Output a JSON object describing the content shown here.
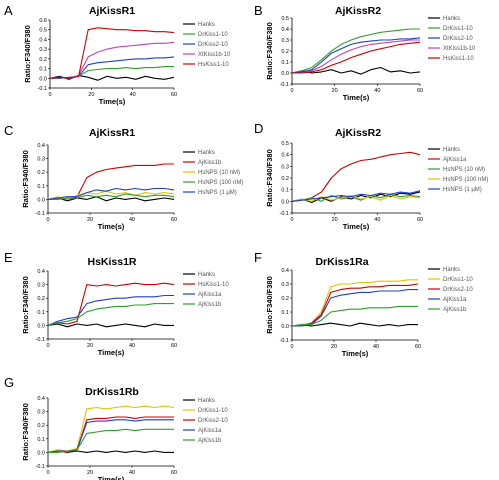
{
  "chart_data": [
    {
      "panel": "A",
      "type": "line",
      "title": "AjKissR1",
      "xlabel": "Time(s)",
      "ylabel": "Ratio:F340/F380",
      "xlim": [
        0,
        60
      ],
      "ylim": [
        -0.1,
        0.6
      ],
      "xticks": [
        "0",
        "20",
        "40",
        "60"
      ],
      "yticks": [
        "-0.1",
        "0.0",
        "0.1",
        "0.2",
        "0.3",
        "0.4",
        "0.5",
        "0.6"
      ],
      "legend_position": "top-right",
      "series": [
        {
          "name": "Hanks",
          "color": "#000000",
          "values": [
            0,
            0.02,
            -0.01,
            0.03,
            0.01,
            -0.02,
            0.02,
            0.0,
            0.01,
            -0.01,
            0.02,
            0.0,
            -0.01,
            0.01
          ]
        },
        {
          "name": "DrKiss1-10",
          "color": "#2ca02c",
          "values": [
            0,
            0.01,
            0.0,
            0.02,
            0.08,
            0.09,
            0.1,
            0.1,
            0.11,
            0.1,
            0.11,
            0.11,
            0.12,
            0.12
          ]
        },
        {
          "name": "DrKiss2-10",
          "color": "#1f3fd1",
          "values": [
            0,
            0.0,
            0.01,
            0.02,
            0.14,
            0.16,
            0.17,
            0.18,
            0.19,
            0.2,
            0.2,
            0.21,
            0.21,
            0.22
          ]
        },
        {
          "name": "XtKiss1b-10",
          "color": "#c040c0",
          "values": [
            0,
            0.01,
            0.0,
            0.03,
            0.22,
            0.27,
            0.3,
            0.32,
            0.33,
            0.34,
            0.35,
            0.36,
            0.36,
            0.37
          ]
        },
        {
          "name": "HsKiss1-10",
          "color": "#d00000",
          "values": [
            0,
            0.01,
            0.0,
            0.02,
            0.5,
            0.52,
            0.51,
            0.5,
            0.5,
            0.49,
            0.49,
            0.48,
            0.48,
            0.47
          ]
        }
      ]
    },
    {
      "panel": "B",
      "type": "line",
      "title": "AjKissR2",
      "xlabel": "Time(s)",
      "ylabel": "Ratio:F340/F380",
      "xlim": [
        0,
        60
      ],
      "ylim": [
        -0.1,
        0.5
      ],
      "xticks": [
        "0",
        "20",
        "40",
        "60"
      ],
      "yticks": [
        "-0.1",
        "0.0",
        "0.1",
        "0.2",
        "0.3",
        "0.4",
        "0.5"
      ],
      "legend_position": "top-right",
      "series": [
        {
          "name": "Hanks",
          "color": "#000000",
          "values": [
            0,
            0.02,
            0.0,
            0.01,
            0.03,
            0.0,
            0.02,
            -0.01,
            0.03,
            0.05,
            0.01,
            0.02,
            0.0,
            0.01
          ]
        },
        {
          "name": "DrKiss1-10",
          "color": "#2ca02c",
          "values": [
            0,
            0.02,
            0.05,
            0.12,
            0.2,
            0.26,
            0.3,
            0.33,
            0.35,
            0.37,
            0.38,
            0.39,
            0.4,
            0.4
          ]
        },
        {
          "name": "DrKiss2-10",
          "color": "#1f3fd1",
          "values": [
            0,
            0.01,
            0.03,
            0.1,
            0.18,
            0.22,
            0.26,
            0.28,
            0.29,
            0.3,
            0.3,
            0.31,
            0.31,
            0.32
          ]
        },
        {
          "name": "XtKiss1b-10",
          "color": "#c040c0",
          "values": [
            0,
            0.0,
            0.02,
            0.06,
            0.12,
            0.17,
            0.21,
            0.24,
            0.26,
            0.27,
            0.28,
            0.29,
            0.3,
            0.3
          ]
        },
        {
          "name": "HsKiss1-10",
          "color": "#d00000",
          "values": [
            0,
            0.0,
            0.01,
            0.03,
            0.07,
            0.1,
            0.14,
            0.17,
            0.2,
            0.22,
            0.24,
            0.26,
            0.27,
            0.28
          ]
        }
      ]
    },
    {
      "panel": "C",
      "type": "line",
      "title": "AjKissR1",
      "xlabel": "Time(s)",
      "ylabel": "Ratio:F340/F380",
      "xlim": [
        0,
        60
      ],
      "ylim": [
        -0.1,
        0.4
      ],
      "xticks": [
        "0",
        "20",
        "40",
        "60"
      ],
      "yticks": [
        "-0.1",
        "0.0",
        "0.1",
        "0.2",
        "0.3",
        "0.4"
      ],
      "legend_position": "top-right",
      "series": [
        {
          "name": "Hanks",
          "color": "#000000",
          "values": [
            0,
            0.01,
            -0.01,
            0.01,
            0.0,
            0.02,
            -0.01,
            0.01,
            0.0,
            0.01,
            -0.01,
            0.0,
            0.01,
            0.0
          ]
        },
        {
          "name": "AjKiss1b",
          "color": "#d00000",
          "values": [
            0,
            0.01,
            0.0,
            0.02,
            0.16,
            0.2,
            0.22,
            0.23,
            0.24,
            0.25,
            0.25,
            0.25,
            0.26,
            0.26
          ]
        },
        {
          "name": "HsNPS (10 nM)",
          "color": "#e6c200",
          "values": [
            0,
            0.02,
            0.0,
            0.03,
            0.05,
            0.04,
            0.06,
            0.04,
            0.05,
            0.03,
            0.05,
            0.04,
            0.05,
            0.04
          ]
        },
        {
          "name": "HsNPS (100 nM)",
          "color": "#2ca02c",
          "values": [
            0,
            0.0,
            0.01,
            0.01,
            0.03,
            0.02,
            0.03,
            0.02,
            0.04,
            0.03,
            0.02,
            0.03,
            0.03,
            0.02
          ]
        },
        {
          "name": "HsNPS (1 μM)",
          "color": "#1f3fd1",
          "values": [
            0,
            0.01,
            0.02,
            0.02,
            0.05,
            0.07,
            0.06,
            0.08,
            0.07,
            0.08,
            0.07,
            0.08,
            0.08,
            0.07
          ]
        }
      ]
    },
    {
      "panel": "D",
      "type": "line",
      "title": "AjKissR2",
      "xlabel": "Time(s)",
      "ylabel": "Ratio:F340/F380",
      "xlim": [
        0,
        60
      ],
      "ylim": [
        -0.1,
        0.5
      ],
      "xticks": [
        "0",
        "20",
        "40",
        "60"
      ],
      "yticks": [
        "-0.1",
        "0.0",
        "0.1",
        "0.2",
        "0.3",
        "0.4",
        "0.5"
      ],
      "legend_position": "top-right",
      "series": [
        {
          "name": "Hanks",
          "color": "#000000",
          "values": [
            0,
            0.02,
            -0.01,
            0.03,
            0.0,
            0.04,
            0.02,
            0.05,
            0.03,
            0.06,
            0.04,
            0.07,
            0.06,
            0.08
          ]
        },
        {
          "name": "AjKiss1a",
          "color": "#d00000",
          "values": [
            0,
            0.01,
            0.03,
            0.08,
            0.2,
            0.28,
            0.32,
            0.35,
            0.36,
            0.38,
            0.4,
            0.41,
            0.42,
            0.4
          ]
        },
        {
          "name": "HsNPS (10 nM)",
          "color": "#2ca02c",
          "values": [
            0,
            0.01,
            0.03,
            0.0,
            0.05,
            0.02,
            0.04,
            0.01,
            0.05,
            0.03,
            0.06,
            0.04,
            0.05,
            0.04
          ]
        },
        {
          "name": "HsNPS (100 nM)",
          "color": "#e6c200",
          "values": [
            0,
            0.02,
            0.0,
            0.04,
            0.01,
            0.03,
            0.05,
            0.02,
            0.04,
            0.01,
            0.05,
            0.02,
            0.04,
            0.03
          ]
        },
        {
          "name": "HsNPS (1 μM)",
          "color": "#1f3fd1",
          "values": [
            0,
            0.01,
            0.02,
            0.03,
            0.04,
            0.05,
            0.04,
            0.06,
            0.05,
            0.07,
            0.06,
            0.08,
            0.07,
            0.09
          ]
        }
      ]
    },
    {
      "panel": "E",
      "type": "line",
      "title": "HsKiss1R",
      "xlabel": "Time(s)",
      "ylabel": "Ratio:F340/F380",
      "xlim": [
        0,
        60
      ],
      "ylim": [
        -0.1,
        0.4
      ],
      "xticks": [
        "0",
        "20",
        "40",
        "60"
      ],
      "yticks": [
        "-0.1",
        "0.0",
        "0.1",
        "0.2",
        "0.3",
        "0.4"
      ],
      "legend_position": "top-right",
      "series": [
        {
          "name": "Hanks",
          "color": "#000000",
          "values": [
            0,
            0.01,
            -0.01,
            0.01,
            0.0,
            0.01,
            -0.01,
            0.0,
            0.01,
            0.0,
            -0.01,
            0.01,
            0.0,
            0.0
          ]
        },
        {
          "name": "HsKiss1-10",
          "color": "#d00000",
          "values": [
            0,
            0.02,
            0.01,
            0.03,
            0.3,
            0.29,
            0.3,
            0.29,
            0.3,
            0.31,
            0.3,
            0.3,
            0.31,
            0.3
          ]
        },
        {
          "name": "AjKiss1a",
          "color": "#1f3fd1",
          "values": [
            0,
            0.03,
            0.05,
            0.06,
            0.16,
            0.18,
            0.19,
            0.2,
            0.2,
            0.21,
            0.21,
            0.21,
            0.22,
            0.22
          ]
        },
        {
          "name": "AjKiss1b",
          "color": "#2ca02c",
          "values": [
            0,
            0.02,
            0.03,
            0.05,
            0.1,
            0.12,
            0.13,
            0.14,
            0.14,
            0.15,
            0.15,
            0.16,
            0.16,
            0.16
          ]
        }
      ]
    },
    {
      "panel": "F",
      "type": "line",
      "title": "DrKiss1Ra",
      "xlabel": "Time(s)",
      "ylabel": "Ratio:F340/F380",
      "xlim": [
        0,
        60
      ],
      "ylim": [
        -0.1,
        0.4
      ],
      "xticks": [
        "0",
        "20",
        "40",
        "60"
      ],
      "yticks": [
        "-0.1",
        "0.0",
        "0.1",
        "0.2",
        "0.3",
        "0.4"
      ],
      "legend_position": "top-right",
      "series": [
        {
          "name": "Hanks",
          "color": "#000000",
          "values": [
            0,
            0.01,
            0.0,
            0.01,
            0.02,
            0.01,
            0.0,
            0.02,
            0.01,
            0.0,
            0.01,
            0.0,
            0.01,
            0.01
          ]
        },
        {
          "name": "DrKiss1-10",
          "color": "#e6c200",
          "values": [
            0,
            0.01,
            0.02,
            0.1,
            0.28,
            0.3,
            0.3,
            0.31,
            0.31,
            0.32,
            0.32,
            0.32,
            0.33,
            0.33
          ]
        },
        {
          "name": "DrKiss2-10",
          "color": "#d00000",
          "values": [
            0,
            0.0,
            0.02,
            0.08,
            0.24,
            0.26,
            0.27,
            0.27,
            0.28,
            0.28,
            0.29,
            0.29,
            0.29,
            0.3
          ]
        },
        {
          "name": "AjKiss1a",
          "color": "#1f3fd1",
          "values": [
            0,
            0.0,
            0.01,
            0.07,
            0.2,
            0.22,
            0.23,
            0.24,
            0.24,
            0.25,
            0.25,
            0.25,
            0.26,
            0.26
          ]
        },
        {
          "name": "AjKiss1b",
          "color": "#2ca02c",
          "values": [
            0,
            0.01,
            0.01,
            0.04,
            0.1,
            0.11,
            0.12,
            0.12,
            0.13,
            0.13,
            0.13,
            0.14,
            0.14,
            0.14
          ]
        }
      ]
    },
    {
      "panel": "G",
      "type": "line",
      "title": "DrKiss1Rb",
      "xlabel": "Time(s)",
      "ylabel": "Ratio:F340/F380",
      "xlim": [
        0,
        60
      ],
      "ylim": [
        -0.1,
        0.4
      ],
      "xticks": [
        "0",
        "20",
        "40",
        "60"
      ],
      "yticks": [
        "-0.1",
        "0.0",
        "0.1",
        "0.2",
        "0.3",
        "0.4"
      ],
      "legend_position": "top-right",
      "series": [
        {
          "name": "Hanks",
          "color": "#000000",
          "values": [
            0,
            0.01,
            0.0,
            0.01,
            0.0,
            0.01,
            0.0,
            0.01,
            0.0,
            0.01,
            0.0,
            0.01,
            0.0,
            0.0
          ]
        },
        {
          "name": "DrKiss1-10",
          "color": "#e6c200",
          "values": [
            0,
            0.02,
            0.01,
            0.03,
            0.32,
            0.33,
            0.32,
            0.33,
            0.34,
            0.33,
            0.34,
            0.33,
            0.34,
            0.33
          ]
        },
        {
          "name": "DrKiss2-10",
          "color": "#d00000",
          "values": [
            0,
            0.01,
            0.0,
            0.02,
            0.24,
            0.25,
            0.25,
            0.26,
            0.26,
            0.25,
            0.26,
            0.26,
            0.26,
            0.26
          ]
        },
        {
          "name": "AjKiss1a",
          "color": "#1f3fd1",
          "values": [
            0,
            0.01,
            0.01,
            0.02,
            0.22,
            0.23,
            0.23,
            0.24,
            0.24,
            0.23,
            0.24,
            0.24,
            0.24,
            0.24
          ]
        },
        {
          "name": "AjKiss1b",
          "color": "#2ca02c",
          "values": [
            0,
            0.0,
            0.01,
            0.02,
            0.14,
            0.15,
            0.16,
            0.16,
            0.17,
            0.16,
            0.17,
            0.17,
            0.17,
            0.17
          ]
        }
      ]
    }
  ]
}
